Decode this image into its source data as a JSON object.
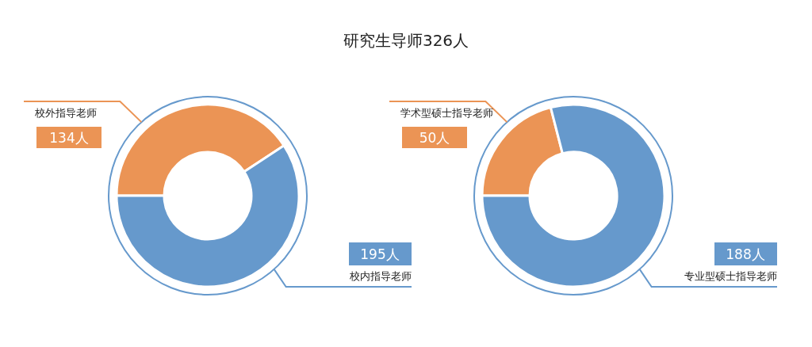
{
  "chart_data": [
    {
      "type": "donut",
      "title": "研究生导师326人",
      "categories": [
        "校外指导老师",
        "校内指导老师"
      ],
      "values": [
        134,
        195
      ],
      "colors": [
        "#eb9455",
        "#6699cc"
      ],
      "value_labels": [
        "134人",
        "195人"
      ]
    },
    {
      "type": "donut",
      "categories": [
        "学术型硕士指导老师",
        "专业型硕士指导老师"
      ],
      "values": [
        50,
        188
      ],
      "colors": [
        "#eb9455",
        "#6699cc"
      ],
      "value_labels": [
        "50人",
        "188人"
      ]
    }
  ]
}
